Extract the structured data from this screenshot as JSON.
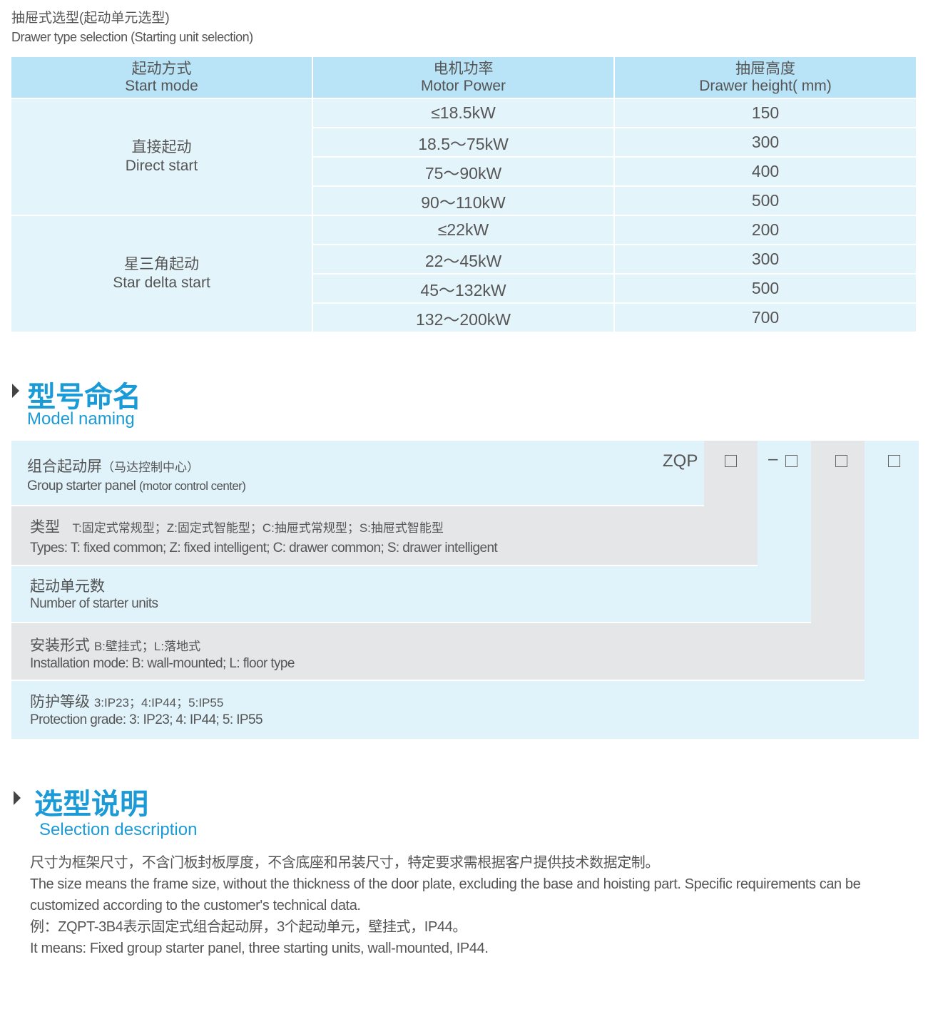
{
  "header": {
    "title_cn": "抽屉式选型(起动单元选型)",
    "title_en": "Drawer type selection (Starting unit selection)"
  },
  "table": {
    "columns": [
      {
        "cn": "起动方式",
        "en": "Start mode"
      },
      {
        "cn": "电机功率",
        "en": "Motor Power"
      },
      {
        "cn": "抽屉高度",
        "en": "Drawer height( mm)"
      }
    ],
    "groups": [
      {
        "cn": "直接起动",
        "en": "Direct start",
        "rows": [
          [
            "≤18.5kW",
            "150"
          ],
          [
            "18.5～75kW",
            "300"
          ],
          [
            "75～90kW",
            "400"
          ],
          [
            "90～110kW",
            "500"
          ]
        ]
      },
      {
        "cn": "星三角起动",
        "en": "Star delta start",
        "rows": [
          [
            "≤22kW",
            "200"
          ],
          [
            "22～45kW",
            "300"
          ],
          [
            "45～132kW",
            "500"
          ],
          [
            "132～200kW",
            "700"
          ]
        ]
      }
    ]
  },
  "model": {
    "title": "型号命名",
    "subtitle": "Model naming",
    "code": "ZQP",
    "dash": "–",
    "rows": [
      {
        "cn": "组合起动屏",
        "cn_note": "（马达控制中心）",
        "en": "Group starter panel",
        "en_note": "(motor control center)"
      },
      {
        "cn": "类型",
        "cn_note": "T:固定式常规型；Z:固定式智能型；C:抽屉式常规型；S:抽屉式智能型",
        "en": "Types: T: fixed common; Z: fixed intelligent; C: drawer common; S: drawer intelligent"
      },
      {
        "cn": "起动单元数",
        "en": "Number of starter units"
      },
      {
        "cn": "安装形式",
        "cn_note": "B:壁挂式；L:落地式",
        "en": "Installation mode: B: wall-mounted; L: floor type"
      },
      {
        "cn": "防护等级",
        "cn_note": "3:IP23；4:IP44；5:IP55",
        "en": "Protection grade:  3: IP23; 4: IP44; 5: IP55"
      }
    ]
  },
  "selection": {
    "title": "选型说明",
    "subtitle": "Selection description",
    "lines": [
      "尺寸为框架尺寸，不含门板封板厚度，不含底座和吊装尺寸，特定要求需根据客户提供技术数据定制。",
      "The size means the frame size, without the thickness of the door plate, excluding the base and hoisting part. Specific requirements can be customized according to the customer's technical data.",
      "例：ZQPT-3B4表示固定式组合起动屏，3个起动单元，壁挂式，IP44。",
      "It means: Fixed group starter panel, three starting units, wall-mounted, IP44."
    ]
  },
  "colors": {
    "accent": "#1a9ad6",
    "header_bg": "#b9e4f7",
    "row_bg": "#e4f4fb",
    "gray_bg": "#e5e6e8"
  }
}
